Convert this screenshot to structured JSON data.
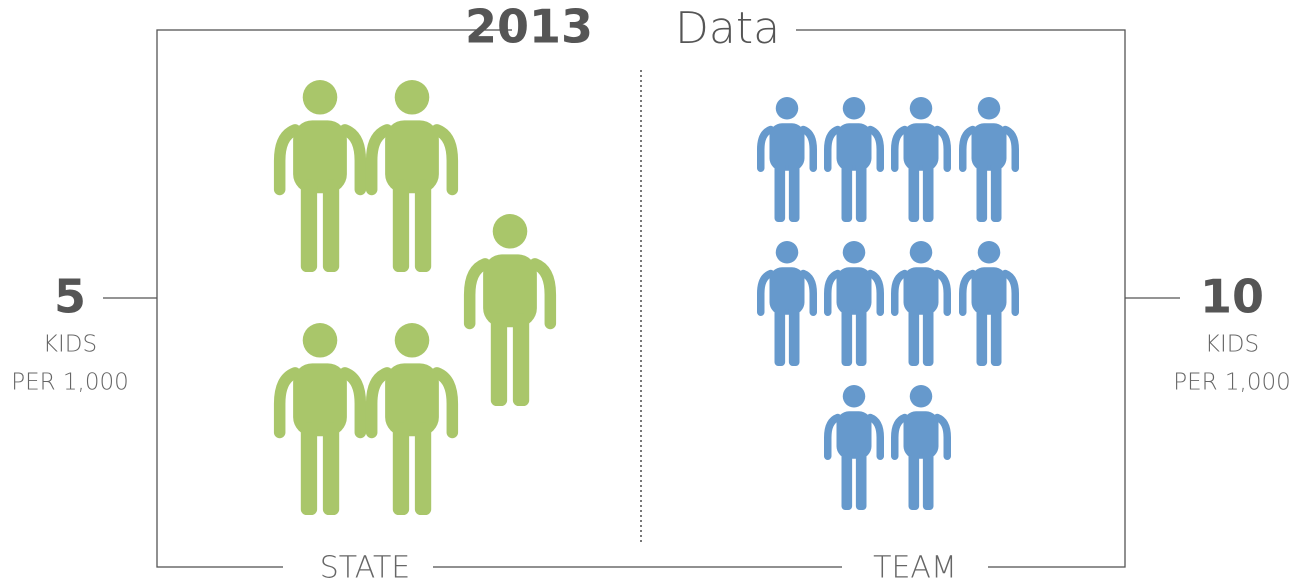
{
  "chart_data": {
    "type": "pictogram",
    "title_bold": "2013",
    "title": "Data",
    "categories": [
      "STATE",
      "TEAM"
    ],
    "values": [
      5,
      10
    ],
    "colors": [
      "#a9c66a",
      "#6699cc"
    ],
    "unit_lines": [
      "KIDS",
      "PER 1,000"
    ]
  }
}
